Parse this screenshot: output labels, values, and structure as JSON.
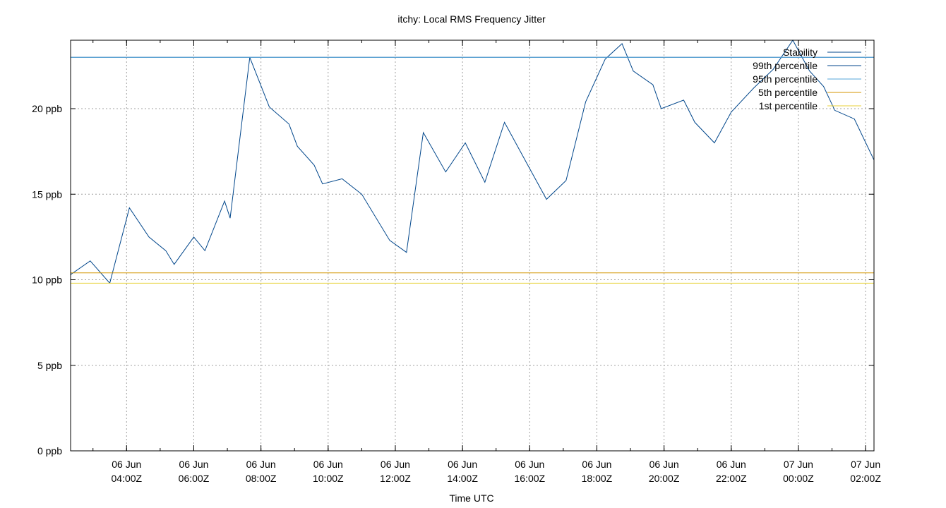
{
  "chart_data": {
    "type": "line",
    "title": "itchy: Local RMS Frequency Jitter",
    "xlabel": "Time UTC",
    "ylabel": "",
    "ylim": [
      0,
      24
    ],
    "y_unit": "ppb",
    "yticks": [
      0,
      5,
      10,
      15,
      20
    ],
    "ytick_labels": [
      "0 ppb",
      "5 ppb",
      "10 ppb",
      "15 ppb",
      "20 ppb"
    ],
    "xlim": [
      "06 Jun 02:20Z",
      "07 Jun 02:15Z"
    ],
    "xticks": [
      {
        "line1": "06 Jun",
        "line2": "04:00Z",
        "time": "06 Jun 04:00Z"
      },
      {
        "line1": "06 Jun",
        "line2": "06:00Z",
        "time": "06 Jun 06:00Z"
      },
      {
        "line1": "06 Jun",
        "line2": "08:00Z",
        "time": "06 Jun 08:00Z"
      },
      {
        "line1": "06 Jun",
        "line2": "10:00Z",
        "time": "06 Jun 10:00Z"
      },
      {
        "line1": "06 Jun",
        "line2": "12:00Z",
        "time": "06 Jun 12:00Z"
      },
      {
        "line1": "06 Jun",
        "line2": "14:00Z",
        "time": "06 Jun 14:00Z"
      },
      {
        "line1": "06 Jun",
        "line2": "16:00Z",
        "time": "06 Jun 16:00Z"
      },
      {
        "line1": "06 Jun",
        "line2": "18:00Z",
        "time": "06 Jun 18:00Z"
      },
      {
        "line1": "06 Jun",
        "line2": "20:00Z",
        "time": "06 Jun 20:00Z"
      },
      {
        "line1": "06 Jun",
        "line2": "22:00Z",
        "time": "06 Jun 22:00Z"
      },
      {
        "line1": "07 Jun",
        "line2": "00:00Z",
        "time": "07 Jun 00:00Z"
      },
      {
        "line1": "07 Jun",
        "line2": "02:00Z",
        "time": "07 Jun 02:00Z"
      }
    ],
    "grid": true,
    "legend_position": "top-right",
    "series": [
      {
        "name": "Stability",
        "color": "#00468b",
        "kind": "line",
        "points": [
          {
            "t": "06 Jun 02:20Z",
            "v": 10.3
          },
          {
            "t": "06 Jun 02:55Z",
            "v": 11.1
          },
          {
            "t": "06 Jun 03:30Z",
            "v": 9.8
          },
          {
            "t": "06 Jun 04:05Z",
            "v": 14.2
          },
          {
            "t": "06 Jun 04:40Z",
            "v": 12.5
          },
          {
            "t": "06 Jun 05:10Z",
            "v": 11.7
          },
          {
            "t": "06 Jun 05:25Z",
            "v": 10.9
          },
          {
            "t": "06 Jun 06:00Z",
            "v": 12.5
          },
          {
            "t": "06 Jun 06:20Z",
            "v": 11.7
          },
          {
            "t": "06 Jun 06:55Z",
            "v": 14.6
          },
          {
            "t": "06 Jun 07:05Z",
            "v": 13.6
          },
          {
            "t": "06 Jun 07:40Z",
            "v": 23.0
          },
          {
            "t": "06 Jun 08:15Z",
            "v": 20.1
          },
          {
            "t": "06 Jun 08:50Z",
            "v": 19.1
          },
          {
            "t": "06 Jun 09:05Z",
            "v": 17.8
          },
          {
            "t": "06 Jun 09:35Z",
            "v": 16.7
          },
          {
            "t": "06 Jun 09:50Z",
            "v": 15.6
          },
          {
            "t": "06 Jun 10:25Z",
            "v": 15.9
          },
          {
            "t": "06 Jun 11:00Z",
            "v": 15.0
          },
          {
            "t": "06 Jun 11:50Z",
            "v": 12.3
          },
          {
            "t": "06 Jun 12:20Z",
            "v": 11.6
          },
          {
            "t": "06 Jun 12:50Z",
            "v": 18.6
          },
          {
            "t": "06 Jun 13:30Z",
            "v": 16.3
          },
          {
            "t": "06 Jun 14:05Z",
            "v": 18.0
          },
          {
            "t": "06 Jun 14:40Z",
            "v": 15.7
          },
          {
            "t": "06 Jun 15:15Z",
            "v": 19.2
          },
          {
            "t": "06 Jun 15:55Z",
            "v": 16.8
          },
          {
            "t": "06 Jun 16:30Z",
            "v": 14.7
          },
          {
            "t": "06 Jun 17:05Z",
            "v": 15.8
          },
          {
            "t": "06 Jun 17:40Z",
            "v": 20.4
          },
          {
            "t": "06 Jun 18:15Z",
            "v": 22.9
          },
          {
            "t": "06 Jun 18:45Z",
            "v": 23.8
          },
          {
            "t": "06 Jun 19:05Z",
            "v": 22.2
          },
          {
            "t": "06 Jun 19:40Z",
            "v": 21.4
          },
          {
            "t": "06 Jun 19:55Z",
            "v": 20.0
          },
          {
            "t": "06 Jun 20:35Z",
            "v": 20.5
          },
          {
            "t": "06 Jun 20:55Z",
            "v": 19.2
          },
          {
            "t": "06 Jun 21:30Z",
            "v": 18.0
          },
          {
            "t": "06 Jun 22:00Z",
            "v": 19.8
          },
          {
            "t": "06 Jun 22:40Z",
            "v": 21.2
          },
          {
            "t": "06 Jun 23:15Z",
            "v": 22.3
          },
          {
            "t": "06 Jun 23:50Z",
            "v": 24.0
          },
          {
            "t": "07 Jun 00:20Z",
            "v": 22.2
          },
          {
            "t": "07 Jun 00:45Z",
            "v": 21.3
          },
          {
            "t": "07 Jun 01:05Z",
            "v": 19.9
          },
          {
            "t": "07 Jun 01:40Z",
            "v": 19.4
          },
          {
            "t": "07 Jun 02:15Z",
            "v": 17.0
          }
        ]
      },
      {
        "name": "99th percentile",
        "color": "#00468b",
        "kind": "hline",
        "value": 23.0
      },
      {
        "name": "95th percentile",
        "color": "#56a4d8",
        "kind": "hline",
        "value": 23.0
      },
      {
        "name": "5th percentile",
        "color": "#d49600",
        "kind": "hline",
        "value": 10.4
      },
      {
        "name": "1st percentile",
        "color": "#e8d23a",
        "kind": "hline",
        "value": 9.8
      }
    ]
  }
}
